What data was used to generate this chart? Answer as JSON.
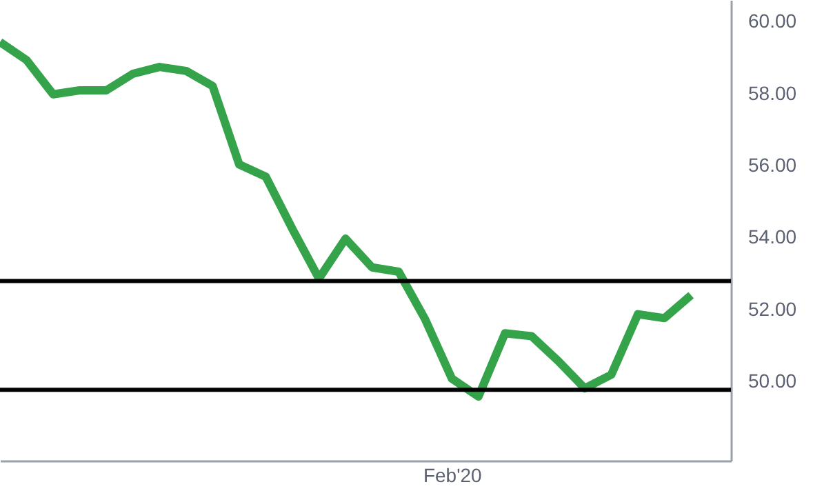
{
  "chart_data": {
    "type": "line",
    "categories": [
      null,
      null,
      null,
      null,
      null,
      null,
      null,
      null,
      null,
      null,
      null,
      null,
      null,
      null,
      null,
      null,
      null,
      "Feb'20",
      null,
      null,
      null,
      null,
      null,
      null,
      null,
      null,
      null
    ],
    "series": [
      {
        "color": "#35a34a",
        "values": [
          59.43,
          58.93,
          57.98,
          58.09,
          58.09,
          58.55,
          58.74,
          58.63,
          58.21,
          56.03,
          55.69,
          54.24,
          52.86,
          53.97,
          53.17,
          53.05,
          51.72,
          50.08,
          49.58,
          51.34,
          51.26,
          50.57,
          49.81,
          50.19,
          51.87,
          51.76,
          52.4
        ]
      }
    ],
    "ylim": [
      47.8,
      60.6
    ],
    "yticks": [
      {
        "value": 50,
        "label": "50.00"
      },
      {
        "value": 52,
        "label": "52.00"
      },
      {
        "value": 54,
        "label": "54.00"
      },
      {
        "value": 56,
        "label": "56.00"
      },
      {
        "value": 58,
        "label": "58.00"
      },
      {
        "value": 60,
        "label": "60.00"
      }
    ],
    "ref_lines": [
      {
        "axis": "y",
        "value": 52.79,
        "color": "#000000"
      },
      {
        "axis": "y",
        "value": 49.77,
        "color": "#000000"
      }
    ],
    "grid": false
  }
}
